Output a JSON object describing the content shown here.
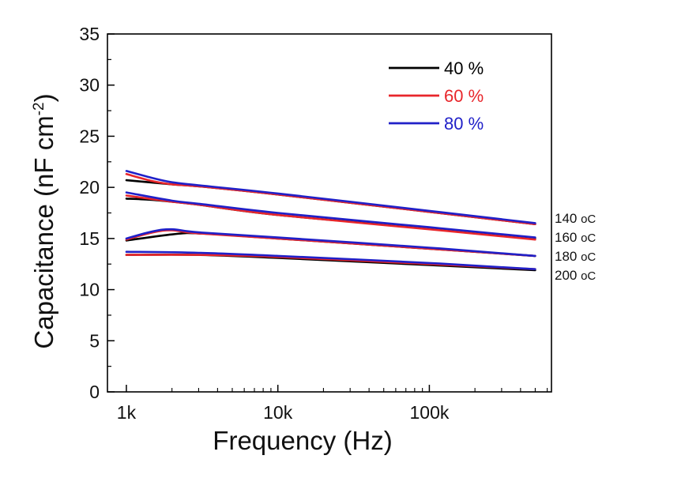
{
  "chart_data": {
    "type": "line",
    "title": "",
    "xlabel": "Frequency (Hz)",
    "ylabel": "Capacitance  (nF cm",
    "ylabel_sup": "-2",
    "ylabel_close": ")",
    "xscale": "log",
    "xlim": [
      750,
      640000
    ],
    "ylim": [
      0,
      35
    ],
    "yticks": [
      0,
      5,
      10,
      15,
      20,
      25,
      30,
      35
    ],
    "ytick_labels": [
      "0",
      "5",
      "10",
      "15",
      "20",
      "25",
      "30",
      "35"
    ],
    "xticks": [
      1000,
      10000,
      100000
    ],
    "xtick_labels": [
      "1k",
      "10k",
      "100k"
    ],
    "legend_position": "top-right",
    "legend": [
      {
        "label": "40 %",
        "color": "#000000"
      },
      {
        "label": "60 %",
        "color": "#e8262b"
      },
      {
        "label": "80 %",
        "color": "#2020c8"
      }
    ],
    "temperature_labels": [
      {
        "text": "140",
        "unit": "oC"
      },
      {
        "text": "160",
        "unit": "oC"
      },
      {
        "text": "180",
        "unit": "oC"
      },
      {
        "text": "200",
        "unit": "oC"
      }
    ],
    "series": [
      {
        "name": "140 °C, 40 %",
        "temperature": "140 °C",
        "rh": "40 %",
        "color": "#000000",
        "x": [
          1000,
          2000,
          3000,
          10000,
          100000,
          500000
        ],
        "y": [
          20.7,
          20.3,
          20.1,
          19.3,
          17.6,
          16.4
        ]
      },
      {
        "name": "140 °C, 60 %",
        "temperature": "140 °C",
        "rh": "60 %",
        "color": "#e8262b",
        "x": [
          1000,
          1500,
          2000,
          3000,
          10000,
          100000,
          500000
        ],
        "y": [
          21.3,
          20.6,
          20.3,
          20.1,
          19.3,
          17.6,
          16.4
        ]
      },
      {
        "name": "140 °C, 80 %",
        "temperature": "140 °C",
        "rh": "80 %",
        "color": "#2020c8",
        "x": [
          1000,
          1500,
          2000,
          3000,
          10000,
          100000,
          500000
        ],
        "y": [
          21.6,
          20.9,
          20.5,
          20.2,
          19.4,
          17.7,
          16.5
        ]
      },
      {
        "name": "160 °C, 40 %",
        "temperature": "160 °C",
        "rh": "40 %",
        "color": "#000000",
        "x": [
          1000,
          1400,
          2000,
          3000,
          10000,
          100000,
          500000
        ],
        "y": [
          18.9,
          18.8,
          18.6,
          18.3,
          17.3,
          16.0,
          15.0
        ]
      },
      {
        "name": "160 °C, 60 %",
        "temperature": "160 °C",
        "rh": "60 %",
        "color": "#e8262b",
        "x": [
          1000,
          2000,
          3000,
          10000,
          100000,
          500000
        ],
        "y": [
          19.2,
          18.6,
          18.3,
          17.3,
          15.9,
          14.9
        ]
      },
      {
        "name": "160 °C, 80 %",
        "temperature": "160 °C",
        "rh": "80 %",
        "color": "#2020c8",
        "x": [
          1000,
          2000,
          3000,
          10000,
          100000,
          500000
        ],
        "y": [
          19.5,
          18.7,
          18.4,
          17.5,
          16.1,
          15.1
        ]
      },
      {
        "name": "180 °C, 40 %",
        "temperature": "180 °C",
        "rh": "40 %",
        "color": "#000000",
        "x": [
          1000,
          2000,
          3000,
          10000,
          100000,
          500000
        ],
        "y": [
          14.8,
          15.4,
          15.5,
          15.0,
          14.0,
          13.3
        ]
      },
      {
        "name": "180 °C, 60 %",
        "temperature": "180 °C",
        "rh": "60 %",
        "color": "#e8262b",
        "x": [
          1000,
          1500,
          2000,
          3000,
          10000,
          100000,
          500000
        ],
        "y": [
          14.9,
          15.6,
          15.8,
          15.5,
          15.0,
          14.0,
          13.3
        ]
      },
      {
        "name": "180 °C, 80 %",
        "temperature": "180 °C",
        "rh": "80 %",
        "color": "#2020c8",
        "x": [
          1000,
          1500,
          2000,
          3000,
          10000,
          100000,
          500000
        ],
        "y": [
          15.0,
          15.7,
          15.9,
          15.6,
          15.1,
          14.1,
          13.3
        ]
      },
      {
        "name": "200 °C, 40 %",
        "temperature": "200 °C",
        "rh": "40 %",
        "color": "#000000",
        "x": [
          1000,
          3000,
          10000,
          100000,
          500000
        ],
        "y": [
          13.4,
          13.4,
          13.1,
          12.4,
          11.9
        ]
      },
      {
        "name": "200 °C, 60 %",
        "temperature": "200 °C",
        "rh": "60 %",
        "color": "#e8262b",
        "x": [
          1000,
          3000,
          10000,
          100000,
          500000
        ],
        "y": [
          13.4,
          13.4,
          13.2,
          12.5,
          12.0
        ]
      },
      {
        "name": "200 °C, 80 %",
        "temperature": "200 °C",
        "rh": "80 %",
        "color": "#2020c8",
        "x": [
          1000,
          3000,
          10000,
          100000,
          500000
        ],
        "y": [
          13.7,
          13.6,
          13.3,
          12.6,
          12.0
        ]
      }
    ]
  }
}
